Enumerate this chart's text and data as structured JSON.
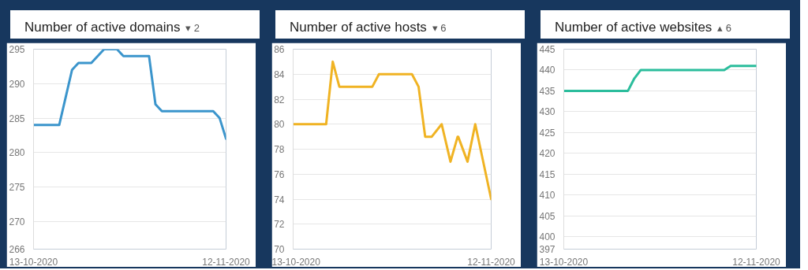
{
  "chart_data": [
    {
      "type": "line",
      "title": "Number of active domains",
      "annotations": [
        "▾ 2"
      ],
      "x": [
        "2020-10-13",
        "2020-10-14",
        "2020-10-15",
        "2020-10-16",
        "2020-10-17",
        "2020-10-18",
        "2020-10-19",
        "2020-10-20",
        "2020-10-21",
        "2020-10-22",
        "2020-10-23",
        "2020-10-24",
        "2020-10-25",
        "2020-10-26",
        "2020-10-27",
        "2020-10-28",
        "2020-10-29",
        "2020-10-30",
        "2020-10-31",
        "2020-11-01",
        "2020-11-02",
        "2020-11-03",
        "2020-11-04",
        "2020-11-05",
        "2020-11-06",
        "2020-11-07",
        "2020-11-08",
        "2020-11-09",
        "2020-11-10",
        "2020-11-11",
        "2020-11-12"
      ],
      "series": [
        {
          "color": "#3b95cc",
          "values": [
            284,
            284,
            284,
            284,
            284,
            288,
            292,
            293,
            293,
            293,
            294,
            295,
            295,
            295,
            294,
            294,
            294,
            294,
            294,
            287,
            286,
            286,
            286,
            286,
            286,
            286,
            286,
            286,
            286,
            285,
            282
          ]
        }
      ],
      "xlim": [
        "2020-10-13",
        "2020-11-12"
      ],
      "xticks": [
        {
          "value": "2020-10-13",
          "label": "13-10-2020"
        },
        {
          "value": "2020-11-12",
          "label": "12-11-2020"
        }
      ],
      "ylim": [
        266,
        295
      ],
      "yticks": [
        266,
        270,
        275,
        280,
        285,
        290,
        295
      ],
      "grid": "y",
      "marker": "none",
      "line_style": "solid"
    },
    {
      "type": "line",
      "title": "Number of active hosts",
      "annotations": [
        "▾ 6"
      ],
      "x": [
        "2020-10-13",
        "2020-10-14",
        "2020-10-15",
        "2020-10-16",
        "2020-10-17",
        "2020-10-18",
        "2020-10-19",
        "2020-10-20",
        "2020-10-21",
        "2020-10-22",
        "2020-10-23",
        "2020-10-24",
        "2020-10-25",
        "2020-10-26",
        "2020-10-27",
        "2020-10-28",
        "2020-10-29",
        "2020-10-30",
        "2020-10-31",
        "2020-11-01",
        "2020-11-02",
        "2020-11-03",
        "2020-11-04T12:00",
        "2020-11-05T20:00",
        "2020-11-06T22:00",
        "2020-11-07",
        "2020-11-08T10:00",
        "2020-11-09T14:00",
        "2020-11-12"
      ],
      "series": [
        {
          "color": "#f0b323",
          "values": [
            80,
            80,
            80,
            80,
            80,
            80,
            85,
            83,
            83,
            83,
            83,
            83,
            83,
            84,
            84,
            84,
            84,
            84,
            84,
            83,
            79,
            79,
            80,
            77,
            79,
            79,
            77,
            80,
            74
          ]
        }
      ],
      "xlim": [
        "2020-10-13",
        "2020-11-12"
      ],
      "xticks": [
        {
          "value": "2020-10-13",
          "label": "13-10-2020"
        },
        {
          "value": "2020-11-12",
          "label": "12-11-2020"
        }
      ],
      "ylim": [
        70,
        86
      ],
      "yticks": [
        70,
        72,
        74,
        76,
        78,
        80,
        82,
        84,
        86
      ],
      "grid": "y",
      "marker": "none",
      "line_style": "solid"
    },
    {
      "type": "line",
      "title": "Number of active websites",
      "annotations": [
        "▴ 6"
      ],
      "x": [
        "2020-10-13",
        "2020-10-14",
        "2020-10-15",
        "2020-10-16",
        "2020-10-17",
        "2020-10-18",
        "2020-10-19",
        "2020-10-20",
        "2020-10-21",
        "2020-10-22",
        "2020-10-23",
        "2020-10-24",
        "2020-10-25",
        "2020-10-26",
        "2020-10-27",
        "2020-10-28",
        "2020-10-29",
        "2020-10-30",
        "2020-10-31",
        "2020-11-01",
        "2020-11-02",
        "2020-11-03",
        "2020-11-04",
        "2020-11-05",
        "2020-11-06",
        "2020-11-07",
        "2020-11-08",
        "2020-11-09",
        "2020-11-10",
        "2020-11-11",
        "2020-11-12"
      ],
      "series": [
        {
          "color": "#2bbd9c",
          "values": [
            435,
            435,
            435,
            435,
            435,
            435,
            435,
            435,
            435,
            435,
            435,
            438,
            440,
            440,
            440,
            440,
            440,
            440,
            440,
            440,
            440,
            440,
            440,
            440,
            440,
            440,
            441,
            441,
            441,
            441,
            441
          ]
        }
      ],
      "xlim": [
        "2020-10-13",
        "2020-11-12"
      ],
      "xticks": [
        {
          "value": "2020-10-13",
          "label": "13-10-2020"
        },
        {
          "value": "2020-11-12",
          "label": "12-11-2020"
        }
      ],
      "ylim": [
        397,
        445
      ],
      "yticks": [
        397,
        400,
        405,
        410,
        415,
        420,
        425,
        430,
        435,
        440,
        445
      ],
      "grid": "y",
      "marker": "none",
      "line_style": "solid"
    }
  ]
}
